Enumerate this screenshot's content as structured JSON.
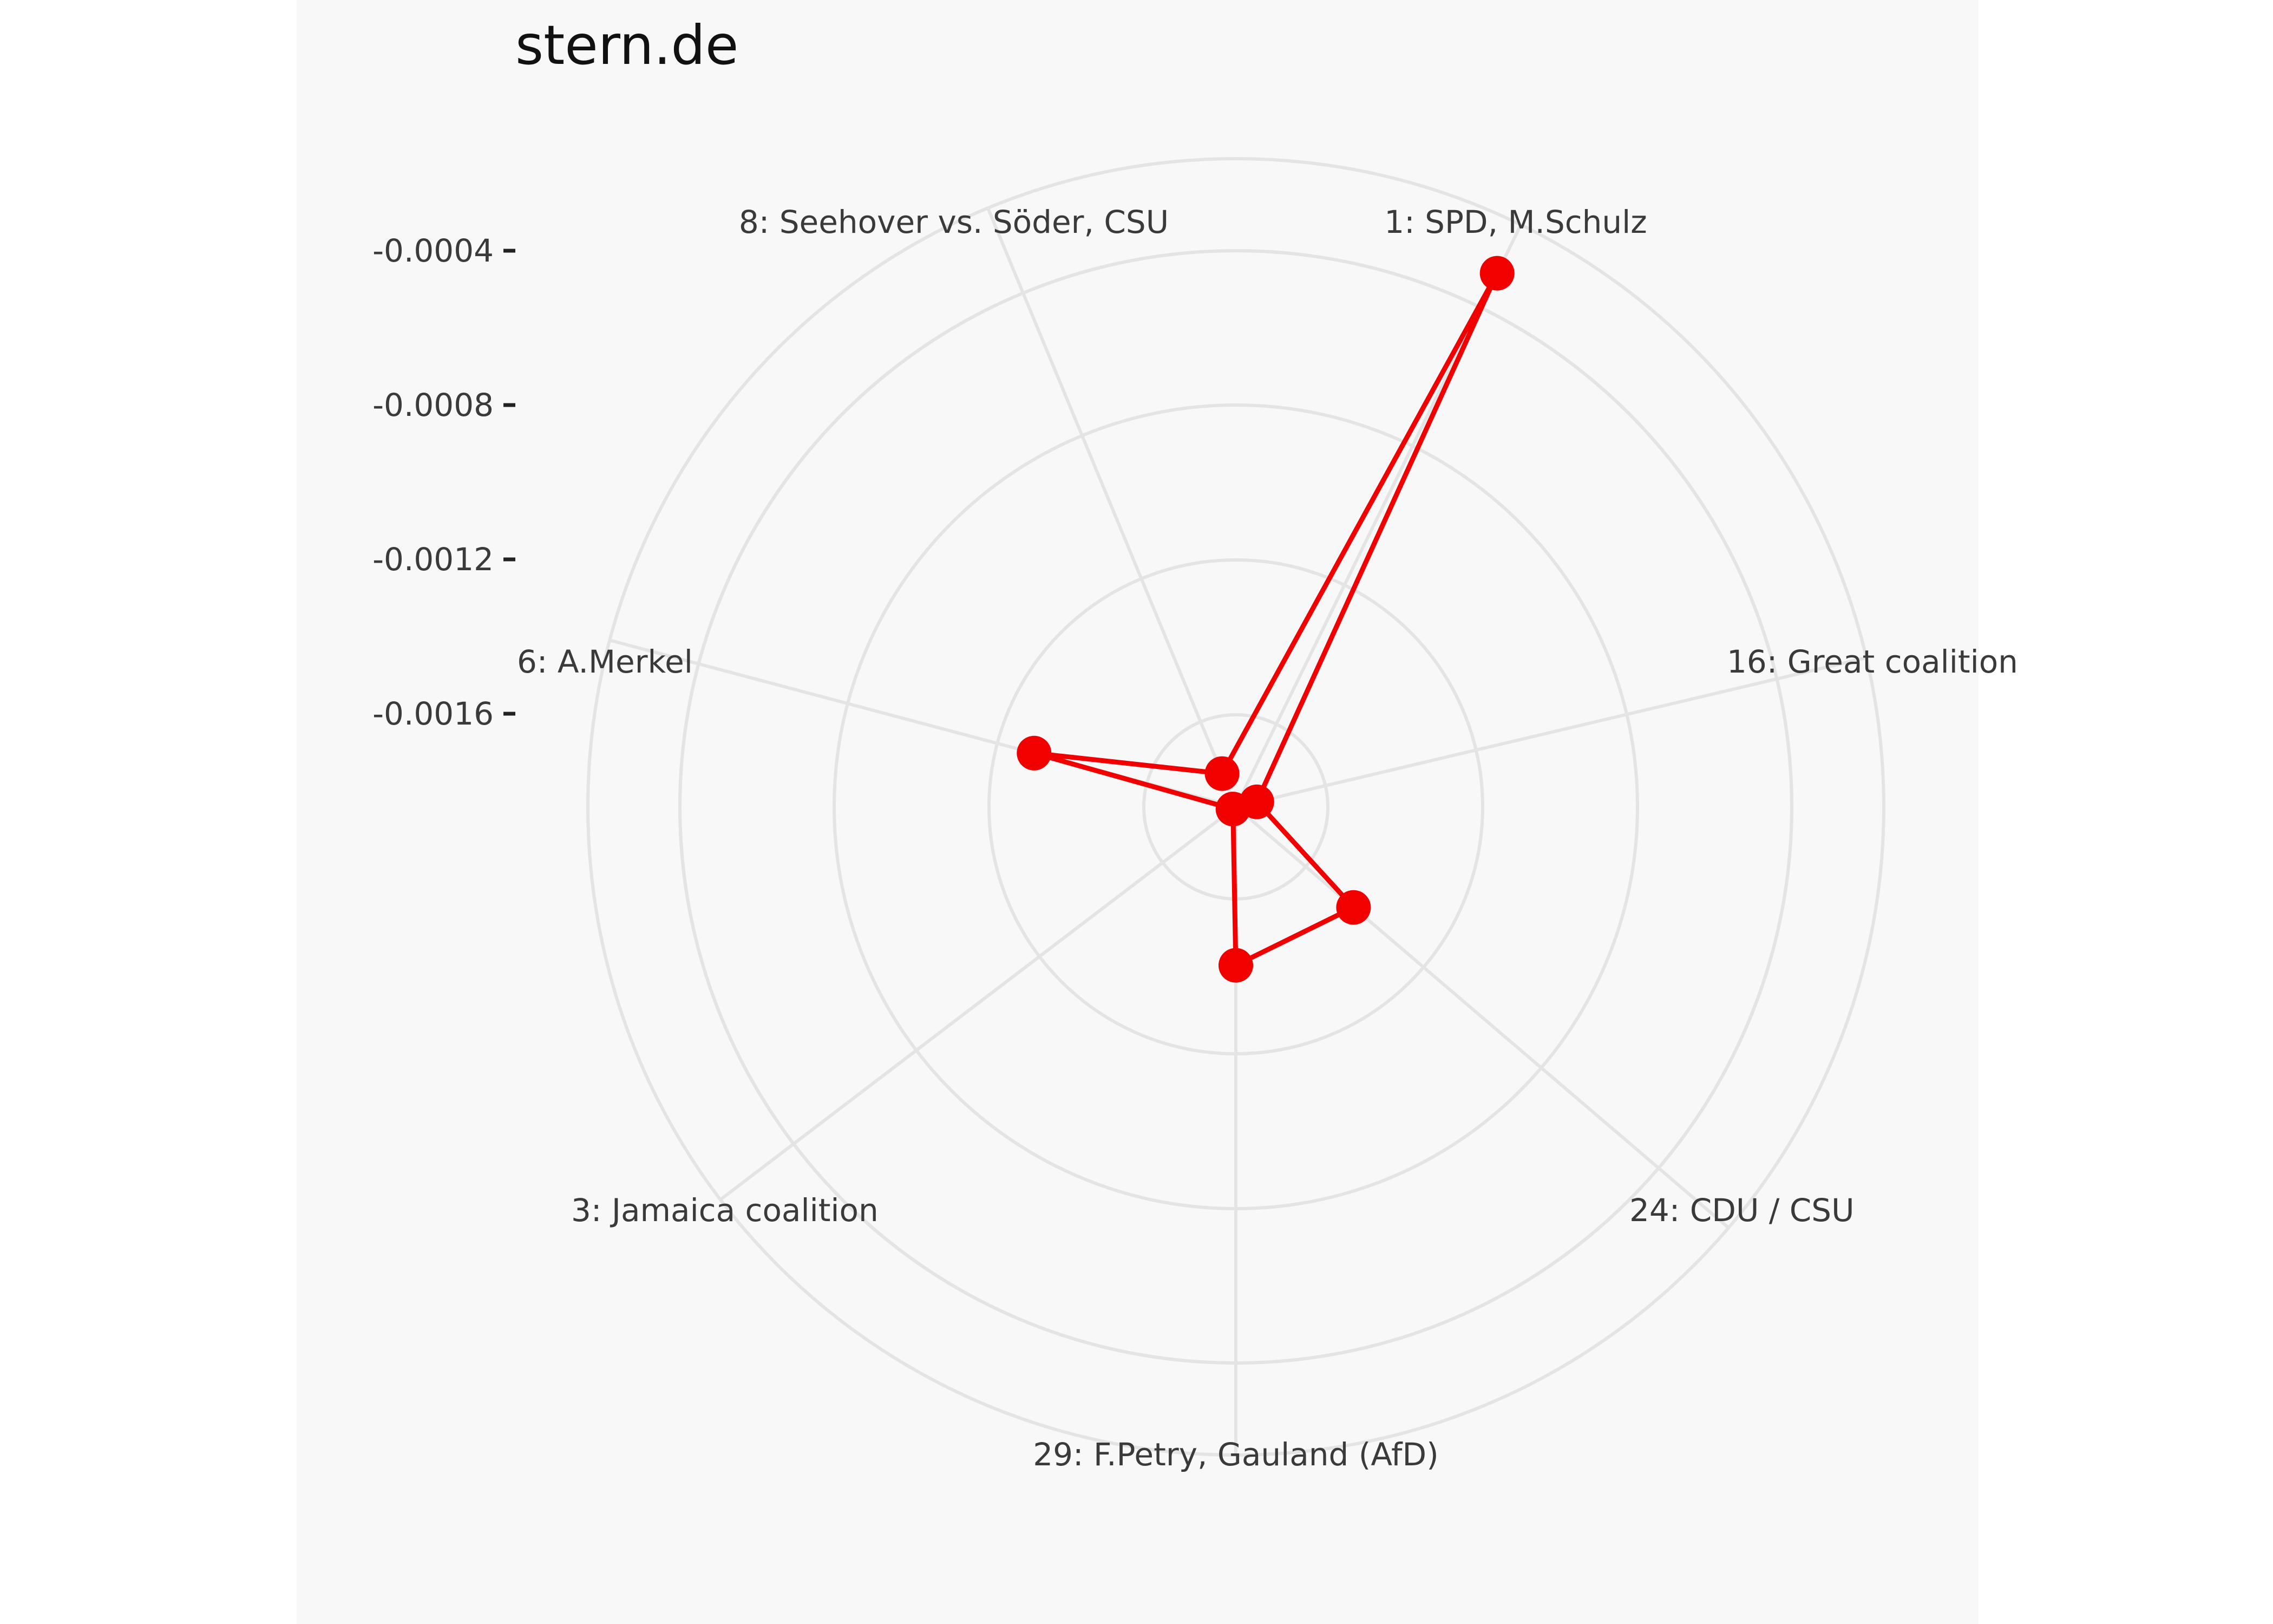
{
  "page": {
    "title": "stern.de"
  },
  "colors": {
    "series": "#f20000",
    "grid": "#e4e4e4",
    "panel": "#f8f8f8"
  },
  "chart_data": {
    "type": "radar",
    "title": "stern.de",
    "axes": [
      "1: SPD, M.Schulz",
      "16: Great coalition",
      "24: CDU / CSU",
      "29: F.Petry, Gauland (AfD)",
      "3: Jamaica coalition",
      "6: A.Merkel",
      "8: Seehover vs. Söder, CSU"
    ],
    "radial_ticks": [
      "-0.0004",
      "-0.0008",
      "-0.0012",
      "-0.0016"
    ],
    "rlim": [
      -0.002,
      -0.0002
    ],
    "grid": true,
    "series": [
      {
        "values": [
          -0.00035,
          -0.00194,
          -0.00157,
          -0.00156,
          -0.00199,
          -0.00142,
          -0.0019
        ]
      }
    ]
  }
}
